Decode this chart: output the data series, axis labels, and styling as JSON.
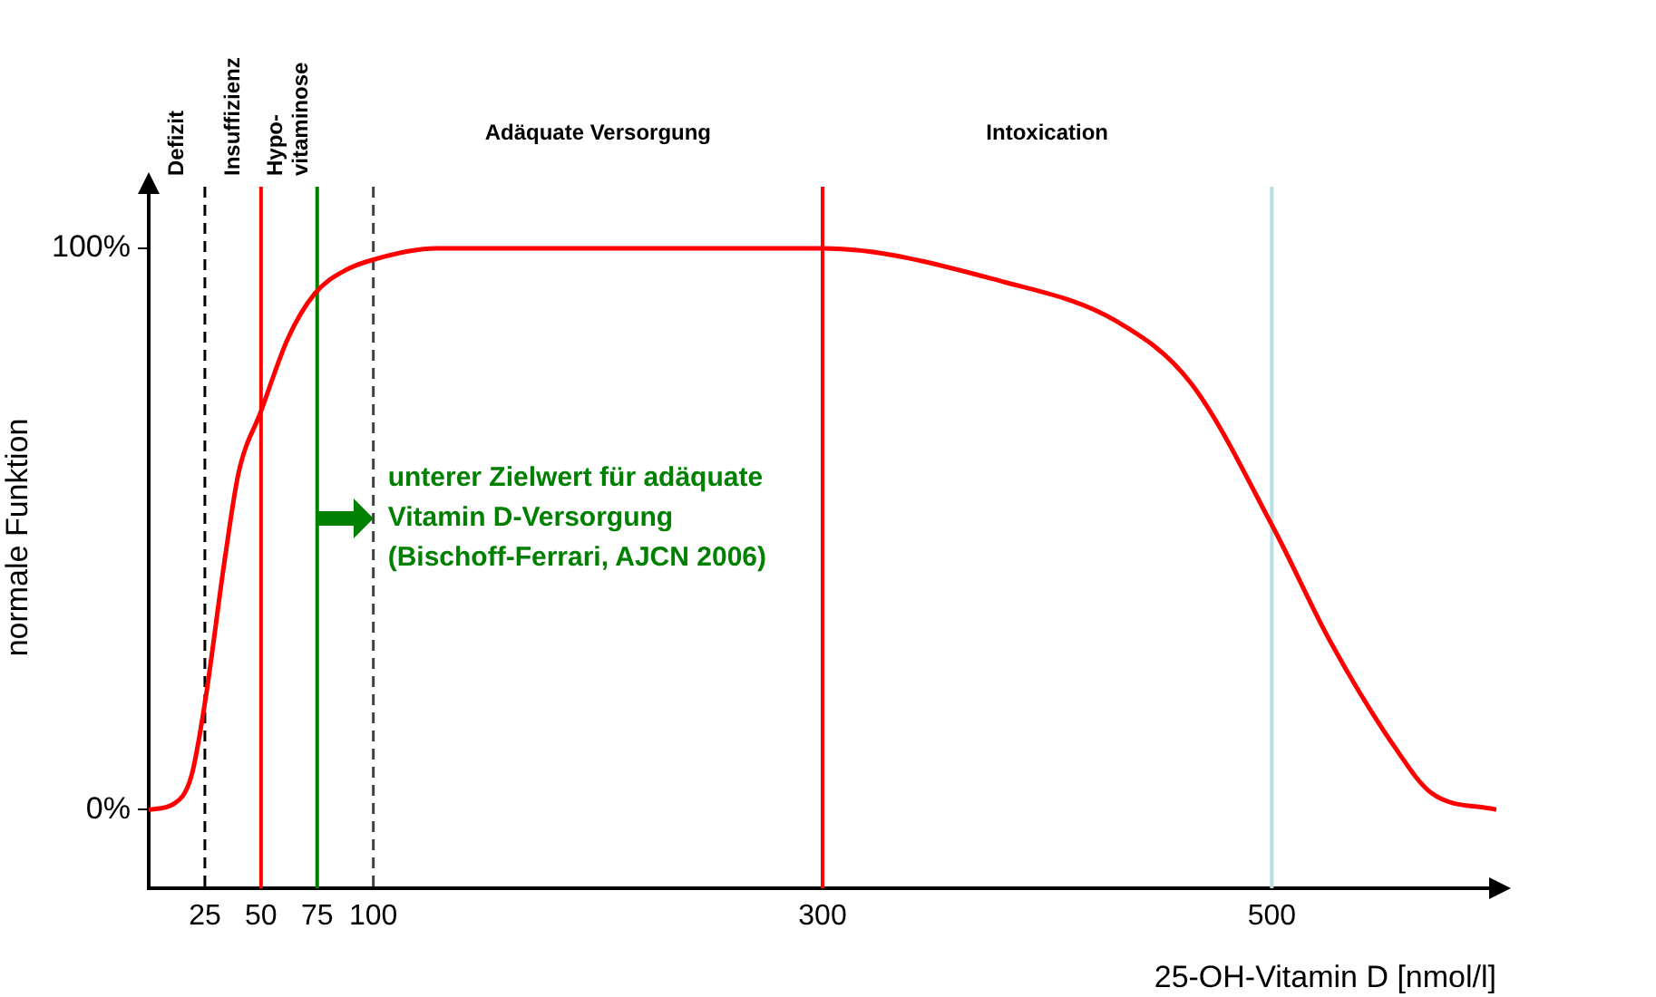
{
  "chart_data": {
    "type": "line",
    "xlabel": "25-OH-Vitamin D [nmol/l]",
    "ylabel": "normale Funktion",
    "x": [
      0,
      11,
      19,
      25,
      34,
      40,
      50,
      62,
      74,
      87,
      100,
      128,
      200,
      300,
      381,
      431,
      464,
      501,
      526,
      555,
      571,
      600
    ],
    "series": [
      {
        "color": "#ff0000",
        "values": [
          0,
          1,
          6,
          19,
          45,
          60,
          71,
          84,
          92,
          96,
          98,
          100,
          100,
          100,
          94,
          87,
          76,
          50,
          30,
          11,
          3,
          0
        ]
      }
    ],
    "xlim": [
      0,
      600
    ],
    "xticks": [
      25,
      50,
      75,
      100,
      300,
      500
    ],
    "ylim": [
      -14,
      111
    ],
    "yticks": [
      {
        "value": 0,
        "label": "0%"
      },
      {
        "value": 100,
        "label": "100%"
      }
    ],
    "ref_lines": [
      {
        "axis": "x",
        "value": 25,
        "color": "#000000",
        "line_style": "dashed"
      },
      {
        "axis": "x",
        "value": 50,
        "color": "#ff0000",
        "line_style": "solid"
      },
      {
        "axis": "x",
        "value": 75,
        "color": "#008000",
        "line_style": "solid"
      },
      {
        "axis": "x",
        "value": 100,
        "color": "#404040",
        "line_style": "dashed"
      },
      {
        "axis": "x",
        "value": 300,
        "color": "#ff0000",
        "line_style": "solid"
      },
      {
        "axis": "x",
        "value": 500,
        "color": "#b7dfe6",
        "line_style": "solid"
      }
    ],
    "annotations": [
      "Defizit",
      "Insuffizienz",
      "Hypo-\nvitaminose",
      "Adäquate Versorgung",
      "Intoxication",
      {
        "text": "unterer Zielwert für adäquate\nVitamin D-Versorgung\n(Bischoff-Ferrari, AJCN 2006)",
        "x": 100,
        "y": 52
      }
    ],
    "marker": "none",
    "line_style": "solid",
    "grid": false,
    "legend": false
  }
}
